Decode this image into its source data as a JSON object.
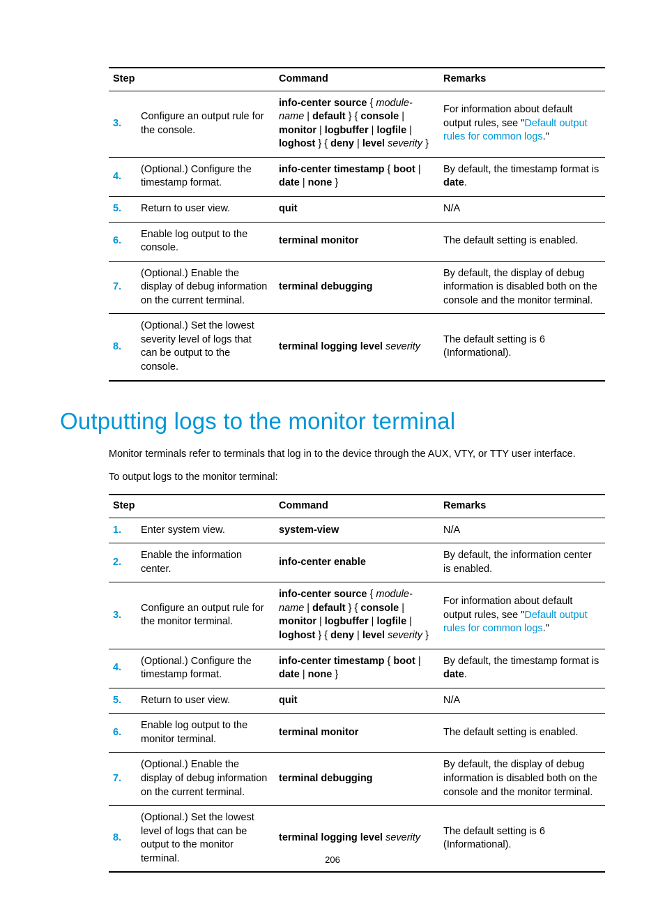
{
  "colors": {
    "accent": "#0096d6",
    "text": "#000000",
    "bg": "#ffffff",
    "rule": "#000000"
  },
  "page_number": "206",
  "table1": {
    "headers": {
      "step": "Step",
      "command": "Command",
      "remarks": "Remarks"
    },
    "rows": [
      {
        "n": "3.",
        "desc": "Configure an output rule for the console.",
        "cmd_parts": {
          "p1": "info-center source",
          "p2": " { ",
          "p3": "module-name",
          "p4": " | ",
          "p5": "default",
          "p6": " } { ",
          "p7": "console",
          "p8": " | ",
          "p9": "monitor",
          "p10": " | ",
          "p11": "logbuffer",
          "p12": " | ",
          "p13": "logfile",
          "p14": " | ",
          "p15": "loghost",
          "p16": " } { ",
          "p17": "deny",
          "p18": " | ",
          "p19": "level",
          "p20": " ",
          "p21": "severity",
          "p22": " }"
        },
        "rem": {
          "pre": "For information about default output rules, see \"",
          "link": "Default output rules for common logs",
          "post": ".\""
        }
      },
      {
        "n": "4.",
        "desc": "(Optional.) Configure the timestamp format.",
        "cmd_parts": {
          "p1": "info-center timestamp",
          "p2": " { ",
          "p3": "boot",
          "p4": " | ",
          "p5": "date",
          "p6": " | ",
          "p7": "none",
          "p8": " }"
        },
        "rem": {
          "pre": "By default, the timestamp format is ",
          "bold": "date",
          "post": "."
        }
      },
      {
        "n": "5.",
        "desc": "Return to user view.",
        "cmd": "quit",
        "rem_plain": "N/A"
      },
      {
        "n": "6.",
        "desc": "Enable log output to the console.",
        "cmd": "terminal monitor",
        "rem_plain": "The default setting is enabled."
      },
      {
        "n": "7.",
        "desc": "(Optional.) Enable the display of debug information on the current terminal.",
        "cmd": "terminal debugging",
        "rem_plain": "By default, the display of debug information is disabled both on the console and the monitor terminal."
      },
      {
        "n": "8.",
        "desc": "(Optional.) Set the lowest severity level of logs that can be output to the console.",
        "cmd_parts": {
          "p1": "terminal logging level",
          "p2": " ",
          "p3": "severity"
        },
        "rem_plain": "The default setting is 6 (Informational)."
      }
    ]
  },
  "section_title": "Outputting logs to the monitor terminal",
  "para1": "Monitor terminals refer to terminals that log in to the device through the AUX, VTY, or TTY user interface.",
  "para2": "To output logs to the monitor terminal:",
  "table2": {
    "headers": {
      "step": "Step",
      "command": "Command",
      "remarks": "Remarks"
    },
    "rows": [
      {
        "n": "1.",
        "desc": "Enter system view.",
        "cmd": "system-view",
        "rem_plain": "N/A"
      },
      {
        "n": "2.",
        "desc": "Enable the information center.",
        "cmd": "info-center enable",
        "rem_plain": "By default, the information center is enabled."
      },
      {
        "n": "3.",
        "desc": "Configure an output rule for the monitor terminal.",
        "cmd_parts": {
          "p1": "info-center source",
          "p2": " { ",
          "p3": "module-name",
          "p4": " | ",
          "p5": "default",
          "p6": " } { ",
          "p7": "console",
          "p8": " | ",
          "p9": "monitor",
          "p10": " | ",
          "p11": "logbuffer",
          "p12": " | ",
          "p13": "logfile",
          "p14": " | ",
          "p15": "loghost",
          "p16": " } { ",
          "p17": "deny",
          "p18": " | ",
          "p19": "level",
          "p20": " ",
          "p21": "severity",
          "p22": " }"
        },
        "rem": {
          "pre": "For information about default output rules, see \"",
          "link": "Default output rules for common logs",
          "post": ".\""
        }
      },
      {
        "n": "4.",
        "desc": "(Optional.) Configure the timestamp format.",
        "cmd_parts": {
          "p1": "info-center timestamp",
          "p2": " { ",
          "p3": "boot",
          "p4": " | ",
          "p5": "date",
          "p6": " | ",
          "p7": "none",
          "p8": " }"
        },
        "rem": {
          "pre": "By default, the timestamp format is ",
          "bold": "date",
          "post": "."
        }
      },
      {
        "n": "5.",
        "desc": "Return to user view.",
        "cmd": "quit",
        "rem_plain": "N/A"
      },
      {
        "n": "6.",
        "desc": "Enable log output to the monitor terminal.",
        "cmd": "terminal monitor",
        "rem_plain": "The default setting is enabled."
      },
      {
        "n": "7.",
        "desc": "(Optional.) Enable the display of debug information on the current terminal.",
        "cmd": "terminal debugging",
        "rem_plain": "By default, the display of debug information is disabled both on the console and the monitor terminal."
      },
      {
        "n": "8.",
        "desc": "(Optional.) Set the lowest level of logs that can be output to the monitor terminal.",
        "cmd_parts": {
          "p1": "terminal logging level",
          "p2": " ",
          "p3": "severity"
        },
        "rem_plain": "The default setting is 6 (Informational)."
      }
    ]
  }
}
